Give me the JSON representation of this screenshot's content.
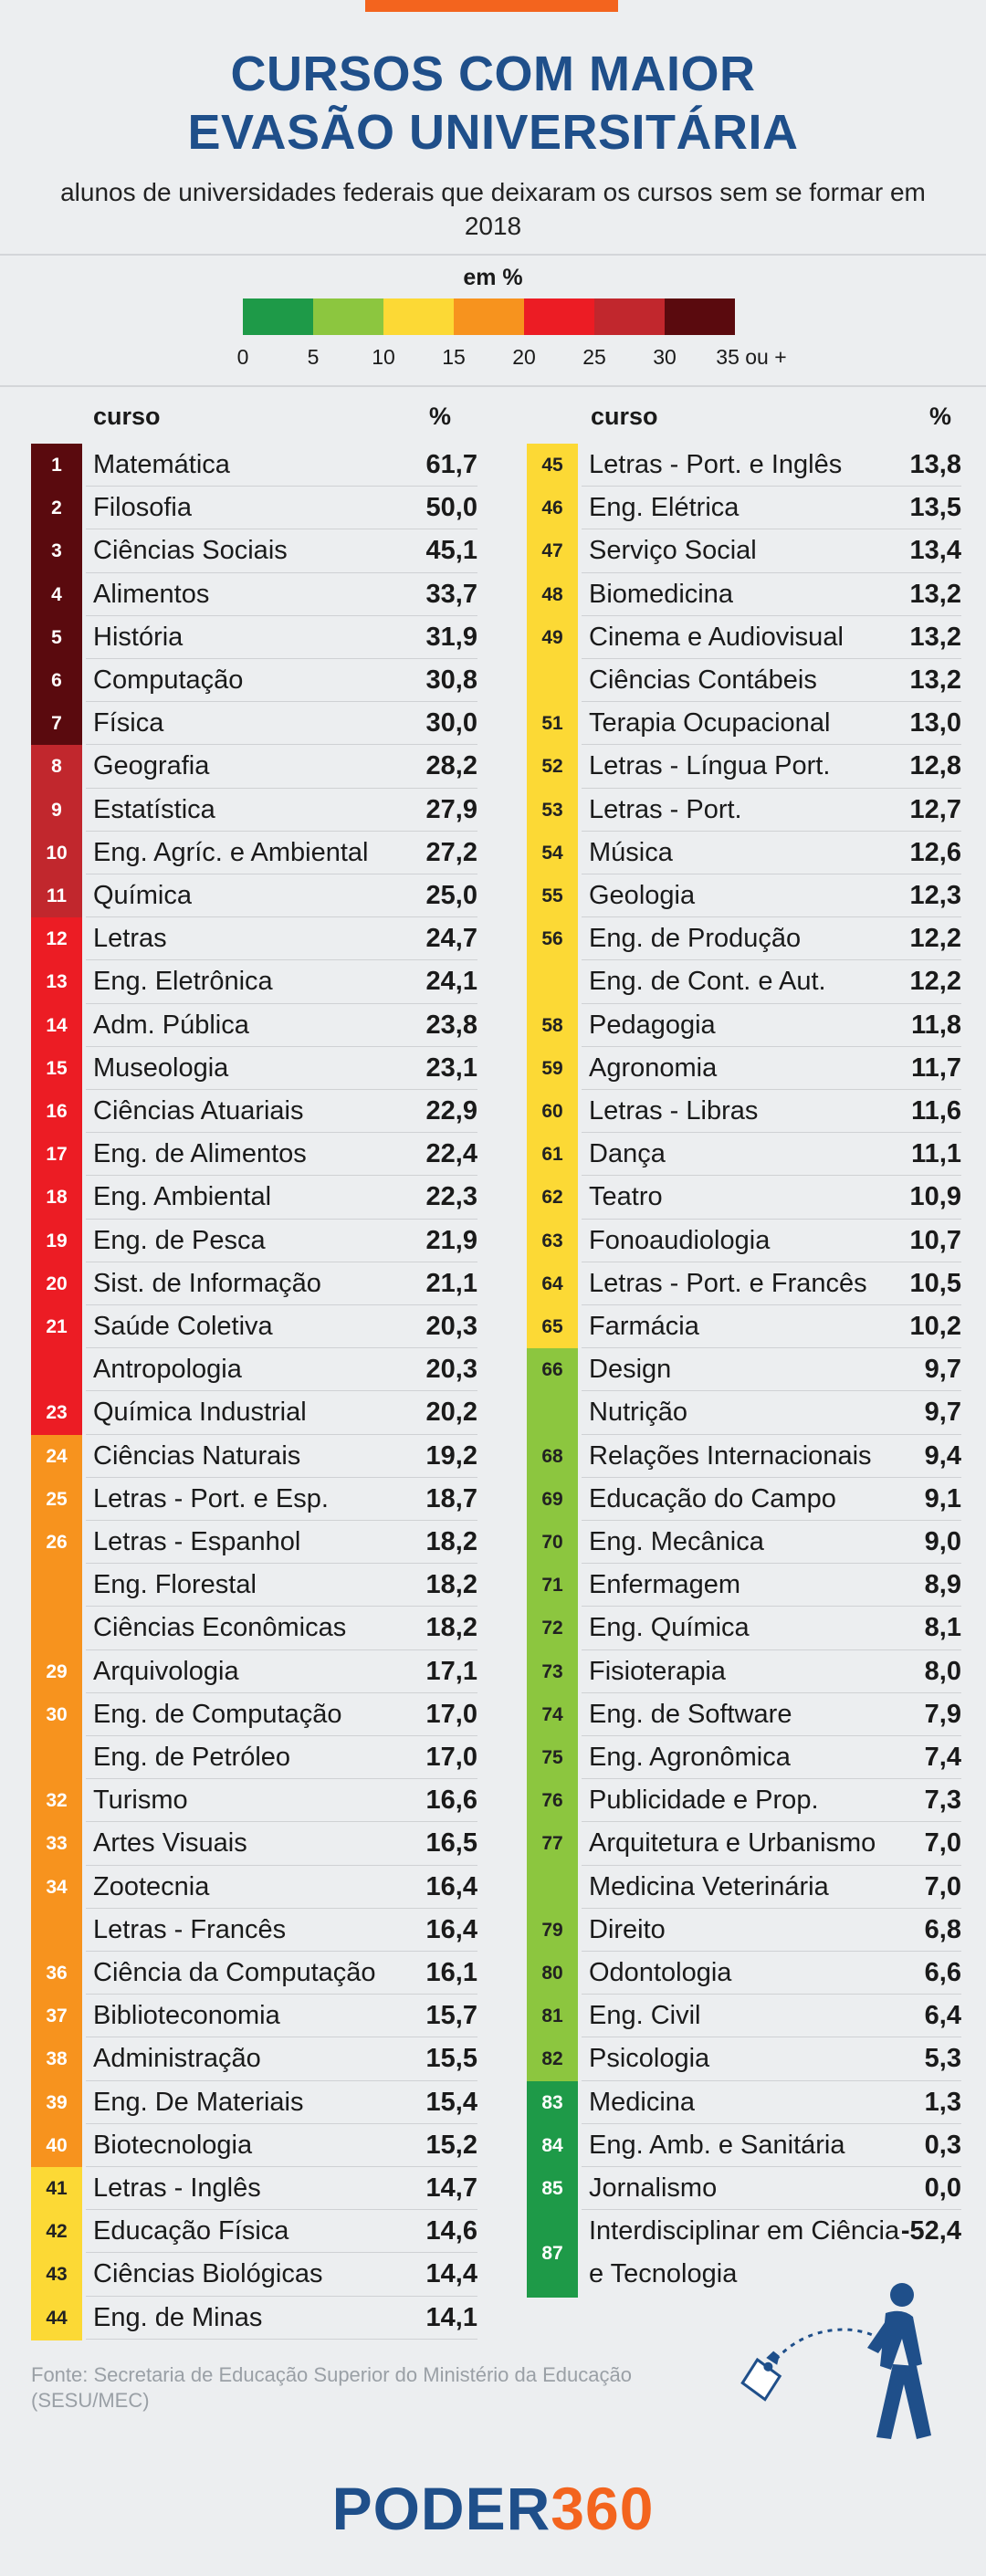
{
  "title_line1": "CURSOS COM MAIOR",
  "title_line2": "EVASÃO UNIVERSITÁRIA",
  "subtitle": "alunos de universidades federais que deixaram os cursos sem se formar em 2018",
  "legend": {
    "title": "em %",
    "ticks": [
      "0",
      "5",
      "10",
      "15",
      "20",
      "25",
      "30",
      "35 ou +"
    ],
    "colors": [
      "#1e9a48",
      "#8cc63f",
      "#fcd935",
      "#f7931e",
      "#ec1c24",
      "#c1272d",
      "#5a0a0e"
    ]
  },
  "column_headers": {
    "course": "curso",
    "percent": "%"
  },
  "source": "Fonte: Secretaria de Educação Superior do Ministério da Educação (SESU/MEC)",
  "logo": {
    "part1": "PODER",
    "part2": "360"
  },
  "chart_data": {
    "type": "table",
    "title": "CURSOS COM MAIOR EVASÃO UNIVERSITÁRIA",
    "subtitle": "alunos de universidades federais que deixaram os cursos sem se formar em 2018",
    "unit": "em %",
    "columns": [
      "rank",
      "curso",
      "%"
    ],
    "rows": [
      {
        "rank": "1",
        "course": "Matemática",
        "value": "61,7"
      },
      {
        "rank": "2",
        "course": "Filosofia",
        "value": "50,0"
      },
      {
        "rank": "3",
        "course": "Ciências Sociais",
        "value": "45,1"
      },
      {
        "rank": "4",
        "course": "Alimentos",
        "value": "33,7"
      },
      {
        "rank": "5",
        "course": "História",
        "value": "31,9"
      },
      {
        "rank": "6",
        "course": "Computação",
        "value": "30,8"
      },
      {
        "rank": "7",
        "course": "Física",
        "value": "30,0"
      },
      {
        "rank": "8",
        "course": "Geografia",
        "value": "28,2"
      },
      {
        "rank": "9",
        "course": "Estatística",
        "value": "27,9"
      },
      {
        "rank": "10",
        "course": "Eng. Agríc. e Ambiental",
        "value": "27,2"
      },
      {
        "rank": "11",
        "course": "Química",
        "value": "25,0"
      },
      {
        "rank": "12",
        "course": "Letras",
        "value": "24,7"
      },
      {
        "rank": "13",
        "course": "Eng. Eletrônica",
        "value": "24,1"
      },
      {
        "rank": "14",
        "course": "Adm. Pública",
        "value": "23,8"
      },
      {
        "rank": "15",
        "course": "Museologia",
        "value": "23,1"
      },
      {
        "rank": "16",
        "course": "Ciências Atuariais",
        "value": "22,9"
      },
      {
        "rank": "17",
        "course": "Eng. de Alimentos",
        "value": "22,4"
      },
      {
        "rank": "18",
        "course": "Eng. Ambiental",
        "value": "22,3"
      },
      {
        "rank": "19",
        "course": "Eng. de Pesca",
        "value": "21,9"
      },
      {
        "rank": "20",
        "course": "Sist. de Informação",
        "value": "21,1"
      },
      {
        "rank": "21",
        "course": "Saúde Coletiva",
        "value": "20,3"
      },
      {
        "rank": "",
        "course": "Antropologia",
        "value": "20,3"
      },
      {
        "rank": "23",
        "course": "Química Industrial",
        "value": "20,2"
      },
      {
        "rank": "24",
        "course": "Ciências Naturais",
        "value": "19,2"
      },
      {
        "rank": "25",
        "course": "Letras - Port. e Esp.",
        "value": "18,7"
      },
      {
        "rank": "26",
        "course": "Letras - Espanhol",
        "value": "18,2"
      },
      {
        "rank": "",
        "course": "Eng. Florestal",
        "value": "18,2"
      },
      {
        "rank": "",
        "course": "Ciências Econômicas",
        "value": "18,2"
      },
      {
        "rank": "29",
        "course": "Arquivologia",
        "value": "17,1"
      },
      {
        "rank": "30",
        "course": "Eng. de Computação",
        "value": "17,0"
      },
      {
        "rank": "",
        "course": "Eng. de Petróleo",
        "value": "17,0"
      },
      {
        "rank": "32",
        "course": "Turismo",
        "value": "16,6"
      },
      {
        "rank": "33",
        "course": "Artes Visuais",
        "value": "16,5"
      },
      {
        "rank": "34",
        "course": "Zootecnia",
        "value": "16,4"
      },
      {
        "rank": "",
        "course": "Letras - Francês",
        "value": "16,4"
      },
      {
        "rank": "36",
        "course": "Ciência da Computação",
        "value": "16,1"
      },
      {
        "rank": "37",
        "course": "Biblioteconomia",
        "value": "15,7"
      },
      {
        "rank": "38",
        "course": "Administração",
        "value": "15,5"
      },
      {
        "rank": "39",
        "course": "Eng. De Materiais",
        "value": "15,4"
      },
      {
        "rank": "40",
        "course": "Biotecnologia",
        "value": "15,2"
      },
      {
        "rank": "41",
        "course": "Letras - Inglês",
        "value": "14,7"
      },
      {
        "rank": "42",
        "course": "Educação Física",
        "value": "14,6"
      },
      {
        "rank": "43",
        "course": "Ciências Biológicas",
        "value": "14,4"
      },
      {
        "rank": "44",
        "course": "Eng. de Minas",
        "value": "14,1"
      },
      {
        "rank": "45",
        "course": "Letras - Port. e Inglês",
        "value": "13,8"
      },
      {
        "rank": "46",
        "course": "Eng. Elétrica",
        "value": "13,5"
      },
      {
        "rank": "47",
        "course": "Serviço Social",
        "value": "13,4"
      },
      {
        "rank": "48",
        "course": "Biomedicina",
        "value": "13,2"
      },
      {
        "rank": "49",
        "course": "Cinema e Audiovisual",
        "value": "13,2"
      },
      {
        "rank": "",
        "course": "Ciências Contábeis",
        "value": "13,2"
      },
      {
        "rank": "51",
        "course": "Terapia Ocupacional",
        "value": "13,0"
      },
      {
        "rank": "52",
        "course": "Letras - Língua Port.",
        "value": "12,8"
      },
      {
        "rank": "53",
        "course": "Letras - Port.",
        "value": "12,7"
      },
      {
        "rank": "54",
        "course": "Música",
        "value": "12,6"
      },
      {
        "rank": "55",
        "course": "Geologia",
        "value": "12,3"
      },
      {
        "rank": "56",
        "course": "Eng. de Produção",
        "value": "12,2"
      },
      {
        "rank": "",
        "course": "Eng. de Cont. e Aut.",
        "value": "12,2"
      },
      {
        "rank": "58",
        "course": "Pedagogia",
        "value": "11,8"
      },
      {
        "rank": "59",
        "course": "Agronomia",
        "value": "11,7"
      },
      {
        "rank": "60",
        "course": "Letras - Libras",
        "value": "11,6"
      },
      {
        "rank": "61",
        "course": "Dança",
        "value": "11,1"
      },
      {
        "rank": "62",
        "course": "Teatro",
        "value": "10,9"
      },
      {
        "rank": "63",
        "course": "Fonoaudiologia",
        "value": "10,7"
      },
      {
        "rank": "64",
        "course": "Letras - Port. e Francês",
        "value": "10,5"
      },
      {
        "rank": "65",
        "course": "Farmácia",
        "value": "10,2"
      },
      {
        "rank": "66",
        "course": "Design",
        "value": "9,7"
      },
      {
        "rank": "",
        "course": "Nutrição",
        "value": "9,7"
      },
      {
        "rank": "68",
        "course": "Relações Internacionais",
        "value": "9,4"
      },
      {
        "rank": "69",
        "course": "Educação do Campo",
        "value": "9,1"
      },
      {
        "rank": "70",
        "course": "Eng. Mecânica",
        "value": "9,0"
      },
      {
        "rank": "71",
        "course": "Enfermagem",
        "value": "8,9"
      },
      {
        "rank": "72",
        "course": "Eng. Química",
        "value": "8,1"
      },
      {
        "rank": "73",
        "course": "Fisioterapia",
        "value": "8,0"
      },
      {
        "rank": "74",
        "course": "Eng. de Software",
        "value": "7,9"
      },
      {
        "rank": "75",
        "course": "Eng. Agronômica",
        "value": "7,4"
      },
      {
        "rank": "76",
        "course": "Publicidade e Prop.",
        "value": "7,3"
      },
      {
        "rank": "77",
        "course": "Arquitetura e Urbanismo",
        "value": "7,0"
      },
      {
        "rank": "",
        "course": "Medicina Veterinária",
        "value": "7,0"
      },
      {
        "rank": "79",
        "course": "Direito",
        "value": "6,8"
      },
      {
        "rank": "80",
        "course": "Odontologia",
        "value": "6,6"
      },
      {
        "rank": "81",
        "course": "Eng. Civil",
        "value": "6,4"
      },
      {
        "rank": "82",
        "course": "Psicologia",
        "value": "5,3"
      },
      {
        "rank": "83",
        "course": "Medicina",
        "value": "1,3"
      },
      {
        "rank": "84",
        "course": "Eng. Amb. e Sanitária",
        "value": "0,3"
      },
      {
        "rank": "85",
        "course": "Jornalismo",
        "value": "0,0"
      },
      {
        "rank": "87",
        "course": "Interdisciplinar em Ciência e Tecnologia",
        "value": "-52,4"
      }
    ]
  }
}
